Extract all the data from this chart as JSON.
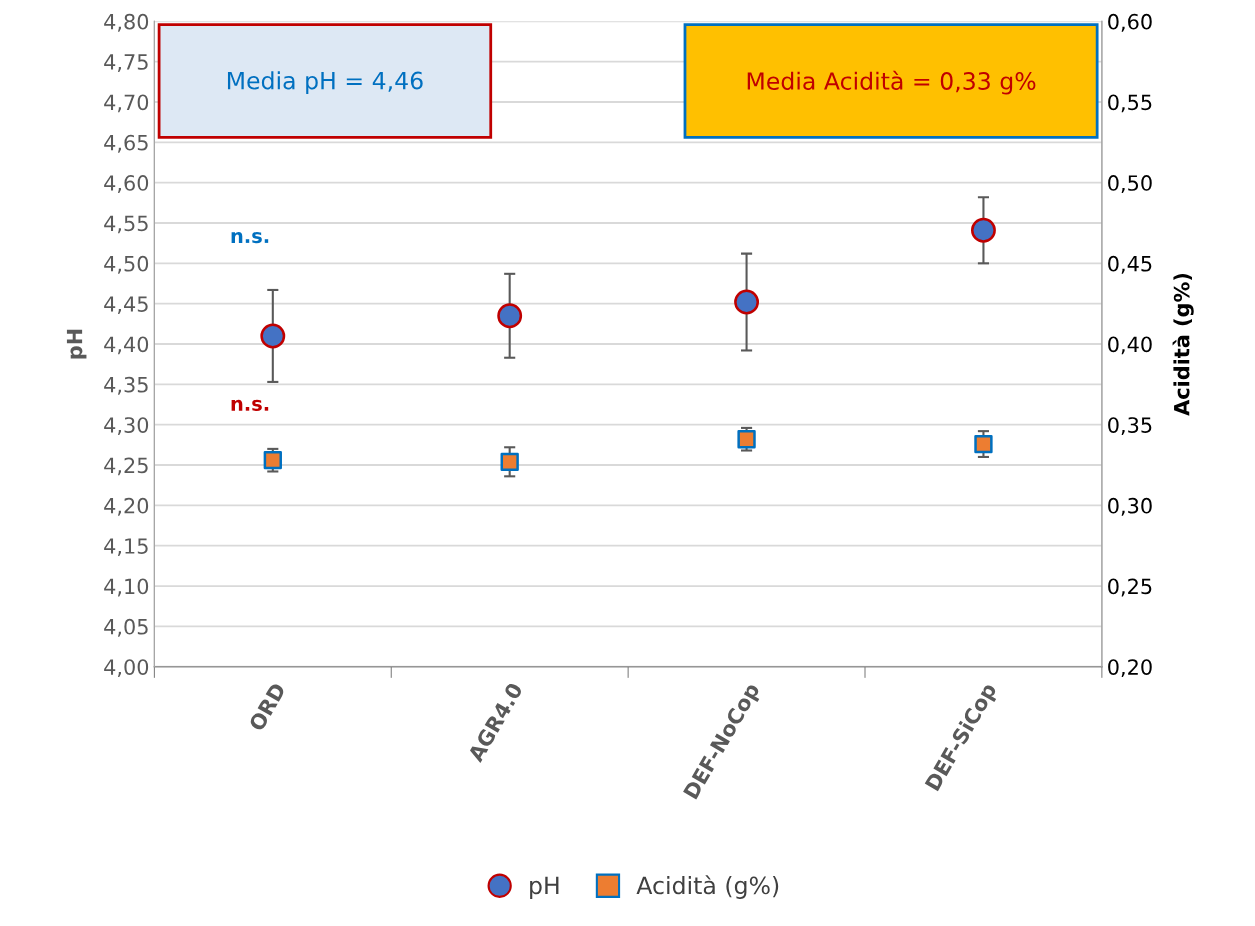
{
  "chart_data": {
    "type": "scatter",
    "ylabel": "pH",
    "y2label": "Acidità (g%)",
    "categories": [
      "ORD",
      "AGR4.0",
      "DEF-NoCop",
      "DEF-SiCop"
    ],
    "series": [
      {
        "name": "pH",
        "color": "#4472c4",
        "marker": "circle",
        "values": [
          4.41,
          4.435,
          4.452,
          4.541
        ],
        "errors": [
          0.057,
          0.052,
          0.06,
          0.041
        ]
      },
      {
        "name": "Acidità (g%)",
        "color": "#ed7d31",
        "marker": "square",
        "axis": "y2",
        "values": [
          0.328,
          0.327,
          0.341,
          0.338
        ],
        "errors": [
          0.007,
          0.009,
          0.007,
          0.008
        ]
      }
    ],
    "ylim": [
      4.0,
      4.8
    ],
    "yticks": [
      {
        "value": 4.0,
        "label": "4,00"
      },
      {
        "value": 4.05,
        "label": "4,05"
      },
      {
        "value": 4.1,
        "label": "4,10"
      },
      {
        "value": 4.15,
        "label": "4,15"
      },
      {
        "value": 4.2,
        "label": "4,20"
      },
      {
        "value": 4.25,
        "label": "4,25"
      },
      {
        "value": 4.3,
        "label": "4,30"
      },
      {
        "value": 4.35,
        "label": "4,35"
      },
      {
        "value": 4.4,
        "label": "4,40"
      },
      {
        "value": 4.45,
        "label": "4,45"
      },
      {
        "value": 4.5,
        "label": "4,50"
      },
      {
        "value": 4.55,
        "label": "4,55"
      },
      {
        "value": 4.6,
        "label": "4,60"
      },
      {
        "value": 4.65,
        "label": "4,65"
      },
      {
        "value": 4.7,
        "label": "4,70"
      },
      {
        "value": 4.75,
        "label": "4,75"
      },
      {
        "value": 4.8,
        "label": "4,80"
      }
    ],
    "y2lim": [
      0.2,
      0.6
    ],
    "y2ticks": [
      {
        "value": 0.2,
        "label": "0,20"
      },
      {
        "value": 0.25,
        "label": "0,25"
      },
      {
        "value": 0.3,
        "label": "0,30"
      },
      {
        "value": 0.35,
        "label": "0,35"
      },
      {
        "value": 0.4,
        "label": "0,40"
      },
      {
        "value": 0.45,
        "label": "0,45"
      },
      {
        "value": 0.5,
        "label": "0,50"
      },
      {
        "value": 0.55,
        "label": "0,55"
      },
      {
        "value": 0.6,
        "label": "0,60"
      }
    ],
    "annotations": [
      "Media pH = 4,46",
      "Media Acidità = 0,33 g%",
      "n.s.",
      "n.s."
    ],
    "grid": "y",
    "legend": "bottom"
  }
}
